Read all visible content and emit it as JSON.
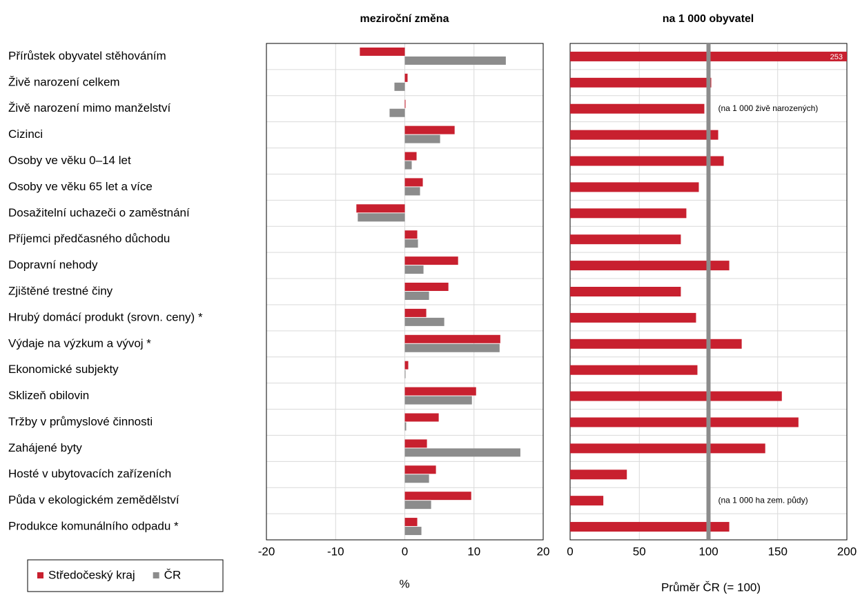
{
  "chart_data": [
    {
      "type": "bar",
      "orientation": "horizontal",
      "title": "meziroční změna",
      "x_label": "%",
      "categories": [
        "Přírůstek obyvatel stěhováním",
        "Živě narození celkem",
        "Živě narození mimo manželství",
        "Cizinci",
        "Osoby ve věku 0–14 let",
        "Osoby ve věku 65 let a více",
        "Dosažitelní uchazeči o zaměstnání",
        "Příjemci předčasného důchodu",
        "Dopravní nehody",
        "Zjištěné trestné činy",
        "Hrubý domácí produkt (srovn. ceny) *",
        "Výdaje na výzkum a vývoj *",
        "Ekonomické subjekty",
        "Sklizeň obilovin",
        "Tržby v průmyslové činnosti",
        "Zahájené byty",
        "Hosté v ubytovacích zařízeních",
        "Půda v ekologickém zemědělství",
        "Produkce komunálního odpadu *"
      ],
      "series": [
        {
          "name": "Středočeský kraj",
          "color": "#c8202f",
          "values": [
            -6.5,
            0.4,
            0.1,
            7.2,
            1.7,
            2.6,
            -7.0,
            1.8,
            7.7,
            6.3,
            3.1,
            13.8,
            0.5,
            10.3,
            4.9,
            3.2,
            4.5,
            9.6,
            1.8
          ]
        },
        {
          "name": "ČR",
          "color": "#8c8c8c",
          "values": [
            14.6,
            -1.5,
            -2.2,
            5.1,
            1.0,
            2.2,
            -6.8,
            1.9,
            2.7,
            3.5,
            5.7,
            13.7,
            0.1,
            9.7,
            0.2,
            16.7,
            3.5,
            3.8,
            2.4
          ]
        }
      ],
      "xlim": [
        -20,
        20
      ],
      "xticks": [
        -20,
        -10,
        0,
        10,
        20
      ],
      "grid": true,
      "legend": "bottom-left"
    },
    {
      "type": "bar",
      "orientation": "horizontal",
      "title": "na 1 000 obyvatel",
      "x_label": "Průměr ČR (= 100)",
      "color": "#c8202f",
      "values": [
        253,
        102,
        97,
        107,
        111,
        93,
        84,
        80,
        115,
        80,
        91,
        124,
        92,
        153,
        165,
        141,
        41,
        24,
        115
      ],
      "value_labels": [
        "253",
        null,
        null,
        null,
        null,
        null,
        null,
        null,
        null,
        null,
        null,
        null,
        null,
        null,
        null,
        null,
        null,
        null,
        null
      ],
      "notes": [
        null,
        null,
        "(na 1 000 živě narozených)",
        null,
        null,
        null,
        null,
        null,
        null,
        null,
        null,
        null,
        null,
        null,
        null,
        null,
        null,
        "(na 1 000 ha zem. půdy)",
        null
      ],
      "reference_line": 100,
      "reference_color": "#8c8c8c",
      "xlim": [
        0,
        200
      ],
      "xticks": [
        0,
        50,
        100,
        150,
        200
      ],
      "grid": true
    }
  ]
}
